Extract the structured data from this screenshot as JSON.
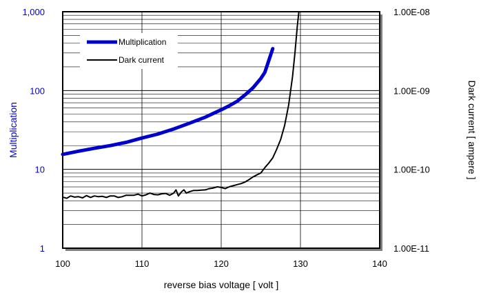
{
  "chart_data": {
    "type": "line",
    "title": "",
    "xlabel": "reverse bias voltage [ volt ]",
    "ylabel_left": "Multiplication",
    "ylabel_right": "Dark current [ ampere ]",
    "xlim": [
      100,
      140
    ],
    "ylim_left": [
      1,
      1000
    ],
    "ylim_right": [
      1e-11,
      1e-08
    ],
    "y_scale": "log",
    "grid": true,
    "x_ticks": [
      "100",
      "110",
      "120",
      "130",
      "140"
    ],
    "y_ticks_left": [
      "1",
      "10",
      "100",
      "1,000"
    ],
    "y_ticks_right": [
      "1.00E-11",
      "1.00E-10",
      "1.00E-09",
      "1.00E-08"
    ],
    "legend_position": "top-left",
    "series": [
      {
        "name": "Multiplication",
        "axis": "left",
        "color": "#0000cc",
        "x": [
          100,
          102,
          104,
          106,
          108,
          110,
          112,
          114,
          116,
          118,
          120,
          121,
          122,
          123,
          124,
          125,
          125.5,
          126,
          126.5
        ],
        "y": [
          15.5,
          17,
          18.5,
          20,
          22,
          25,
          28,
          32.5,
          38.5,
          46,
          57,
          64,
          73,
          88,
          108,
          142,
          170,
          240,
          340
        ]
      },
      {
        "name": "Dark current",
        "axis": "right",
        "color": "#000000",
        "x": [
          100,
          100.5,
          101,
          101.5,
          102,
          102.5,
          103,
          103.5,
          104,
          104.5,
          105,
          105.5,
          106,
          106.5,
          107,
          107.5,
          108,
          108.5,
          109,
          109.5,
          110,
          110.5,
          111,
          111.5,
          112,
          112.5,
          113,
          113.5,
          114,
          114.3,
          114.6,
          115,
          115.3,
          115.6,
          116,
          116.5,
          117,
          117.5,
          118,
          118.5,
          119,
          119.5,
          120,
          120.5,
          121,
          121.5,
          122,
          122.5,
          123,
          123.5,
          124,
          124.5,
          125,
          125.5,
          126,
          126.5,
          127,
          127.5,
          128,
          128.5,
          129,
          129.3,
          129.6,
          129.8
        ],
        "y": [
          4.45e-11,
          4.3e-11,
          4.6e-11,
          4.45e-11,
          4.5e-11,
          4.35e-11,
          4.65e-11,
          4.4e-11,
          4.6e-11,
          4.5e-11,
          4.55e-11,
          4.4e-11,
          4.6e-11,
          4.6e-11,
          4.4e-11,
          4.5e-11,
          4.7e-11,
          4.7e-11,
          4.7e-11,
          4.85e-11,
          4.6e-11,
          4.75e-11,
          5e-11,
          4.8e-11,
          4.75e-11,
          4.9e-11,
          4.95e-11,
          4.7e-11,
          5e-11,
          5.5e-11,
          4.6e-11,
          5.2e-11,
          5.5e-11,
          5e-11,
          5.2e-11,
          5.4e-11,
          5.4e-11,
          5.45e-11,
          5.5e-11,
          5.7e-11,
          5.8e-11,
          6e-11,
          5.9e-11,
          5.7e-11,
          6e-11,
          6.2e-11,
          6.4e-11,
          6.6e-11,
          6.9e-11,
          7.4e-11,
          8e-11,
          8.5e-11,
          9e-11,
          1.05e-10,
          1.2e-10,
          1.4e-10,
          1.8e-10,
          2.4e-10,
          3.6e-10,
          6.5e-10,
          1.5e-09,
          3e-09,
          6.5e-09,
          1e-08
        ]
      }
    ]
  }
}
